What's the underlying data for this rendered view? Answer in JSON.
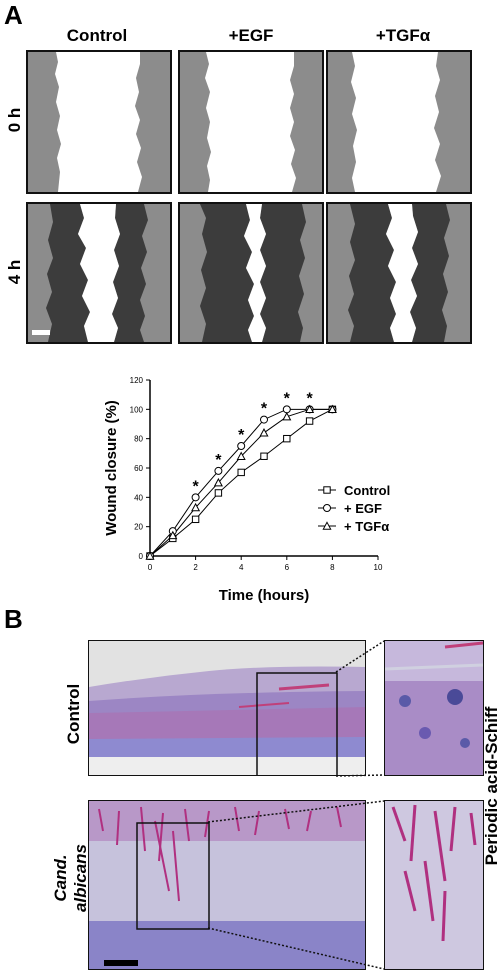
{
  "panelA": {
    "letter": "A",
    "columns": [
      "Control",
      "+EGF",
      "+TGFα"
    ],
    "rows": [
      "0 h",
      "4 h"
    ]
  },
  "chart_data": {
    "type": "line",
    "xlabel": "Time (hours)",
    "ylabel": "Wound closure (%)",
    "xlim": [
      0,
      10
    ],
    "ylim": [
      0,
      120
    ],
    "xticks": [
      "0",
      "2",
      "4",
      "6",
      "8",
      "10"
    ],
    "yticks": [
      "0",
      "20",
      "40",
      "60",
      "80",
      "100",
      "120"
    ],
    "legend_position": "right",
    "series": [
      {
        "name": "Control",
        "marker": "square",
        "x": [
          0,
          1,
          2,
          3,
          4,
          5,
          6,
          7,
          8
        ],
        "y": [
          0,
          12,
          25,
          43,
          57,
          68,
          80,
          92,
          100
        ]
      },
      {
        "name": "+ EGF",
        "marker": "circle",
        "x": [
          0,
          1,
          2,
          3,
          4,
          5,
          6,
          7,
          8
        ],
        "y": [
          0,
          17,
          40,
          58,
          75,
          93,
          100,
          100,
          100
        ]
      },
      {
        "name": "+ TGFα",
        "marker": "triangle",
        "x": [
          0,
          1,
          2,
          3,
          4,
          5,
          6,
          7,
          8
        ],
        "y": [
          0,
          14,
          33,
          50,
          68,
          84,
          95,
          100,
          100
        ]
      }
    ],
    "significance": {
      "symbol": "*",
      "x": [
        2,
        3,
        4,
        5,
        6,
        7
      ]
    }
  },
  "panelB": {
    "letter": "B",
    "rows": [
      {
        "label": "Control",
        "italic": false
      },
      {
        "label": "Cand. albicans",
        "line1": "Cand.",
        "line2": "albicans",
        "italic": true
      }
    ],
    "stain": "Periodic acid-Schiff"
  }
}
